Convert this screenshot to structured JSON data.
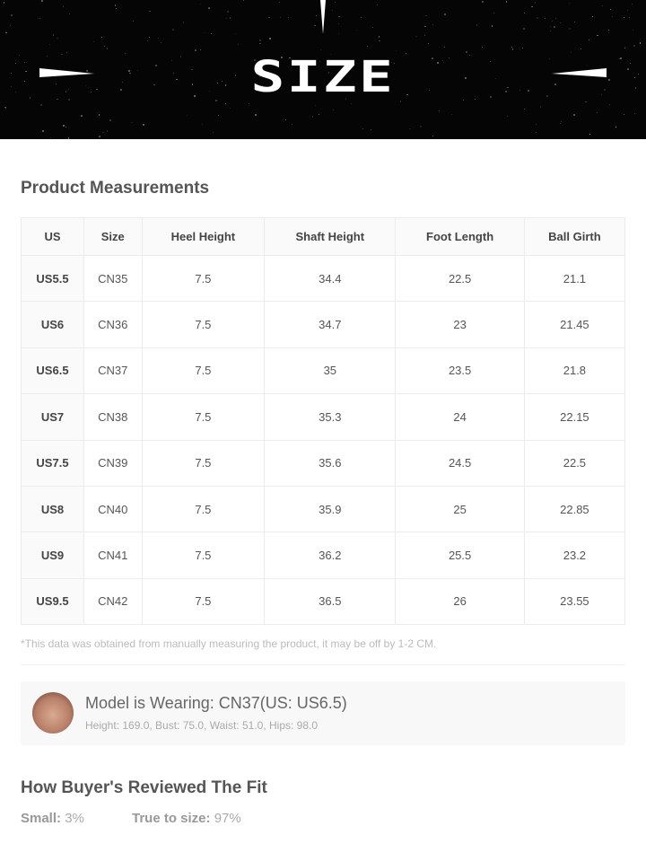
{
  "banner": {
    "title": "SIZE"
  },
  "measurements": {
    "title": "Product Measurements",
    "headers": [
      "US",
      "Size",
      "Heel Height",
      "Shaft Height",
      "Foot Length",
      "Ball Girth"
    ],
    "rows": [
      [
        "US5.5",
        "CN35",
        "7.5",
        "34.4",
        "22.5",
        "21.1"
      ],
      [
        "US6",
        "CN36",
        "7.5",
        "34.7",
        "23",
        "21.45"
      ],
      [
        "US6.5",
        "CN37",
        "7.5",
        "35",
        "23.5",
        "21.8"
      ],
      [
        "US7",
        "CN38",
        "7.5",
        "35.3",
        "24",
        "22.15"
      ],
      [
        "US7.5",
        "CN39",
        "7.5",
        "35.6",
        "24.5",
        "22.5"
      ],
      [
        "US8",
        "CN40",
        "7.5",
        "35.9",
        "25",
        "22.85"
      ],
      [
        "US9",
        "CN41",
        "7.5",
        "36.2",
        "25.5",
        "23.2"
      ],
      [
        "US9.5",
        "CN42",
        "7.5",
        "36.5",
        "26",
        "23.55"
      ]
    ],
    "note": "*This data was obtained from manually measuring the product, it may be off by 1-2 CM."
  },
  "model": {
    "wearing": "Model is Wearing: CN37(US: US6.5)",
    "stats": "Height: 169.0, Bust: 75.0, Waist: 51.0, Hips: 98.0"
  },
  "fit": {
    "title": "How Buyer's Reviewed The Fit",
    "small_label": "Small:",
    "small_value": "3%",
    "true_label": "True to size:",
    "true_value": "97%"
  }
}
